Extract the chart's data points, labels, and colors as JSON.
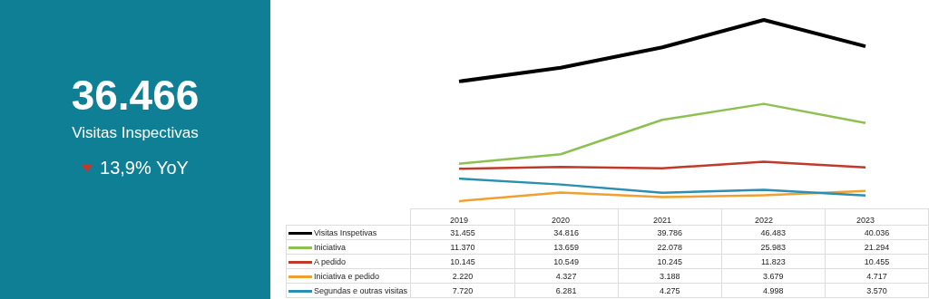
{
  "chart_data": [
    {
      "type": "other",
      "title": "36.466",
      "subtitle": "Visitas Inspectivas",
      "annotations": [
        "13,9% YoY"
      ]
    },
    {
      "type": "line",
      "categories": [
        "2019",
        "2020",
        "2021",
        "2022",
        "2023"
      ],
      "legend": "bottom",
      "series": [
        {
          "name": "Visitas Inspetivas",
          "color": "#000000",
          "values": [
            31455,
            34816,
            39786,
            46483,
            40036
          ],
          "value_labels": [
            "31.455",
            "34.816",
            "39.786",
            "46.483",
            "40.036"
          ]
        },
        {
          "name": "Iniciativa",
          "color": "#8cc152",
          "values": [
            11370,
            13659,
            22078,
            25983,
            21294
          ],
          "value_labels": [
            "11.370",
            "13.659",
            "22.078",
            "25.983",
            "21.294"
          ]
        },
        {
          "name": "A pedido",
          "color": "#c0392b",
          "values": [
            10145,
            10549,
            10245,
            11823,
            10455
          ],
          "value_labels": [
            "10.145",
            "10.549",
            "10.245",
            "11.823",
            "10.455"
          ]
        },
        {
          "name": "Iniciativa e pedido",
          "color": "#f0a030",
          "values": [
            2220,
            4327,
            3188,
            3679,
            4717
          ],
          "value_labels": [
            "2.220",
            "4.327",
            "3.188",
            "3.679",
            "4.717"
          ]
        },
        {
          "name": "Segundas e outras visitas",
          "color": "#2a8fb0",
          "values": [
            7720,
            6281,
            4275,
            4998,
            3570
          ],
          "value_labels": [
            "7.720",
            "6.281",
            "4.275",
            "4.998",
            "3.570"
          ]
        }
      ]
    }
  ]
}
